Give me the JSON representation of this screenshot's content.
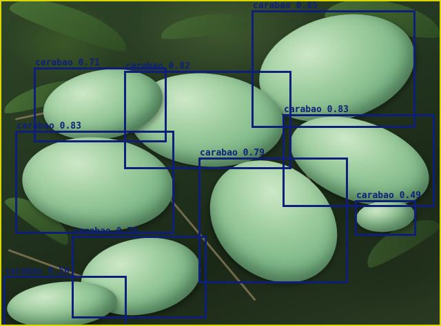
{
  "image": {
    "subject": "carabao mangoes on tree",
    "border_color": "#d8d800",
    "box_color": "#0d1f78"
  },
  "detections": [
    {
      "label": "carabao 0.85"
    },
    {
      "label": "carabao 0.71"
    },
    {
      "label": "carabao 0.82"
    },
    {
      "label": "carabao 0.83"
    },
    {
      "label": "carabao 0.83"
    },
    {
      "label": "carabao 0.79"
    },
    {
      "label": "carabao 0.49"
    },
    {
      "label": "carabao 0.79"
    },
    {
      "label": "carabao 0.50"
    }
  ]
}
